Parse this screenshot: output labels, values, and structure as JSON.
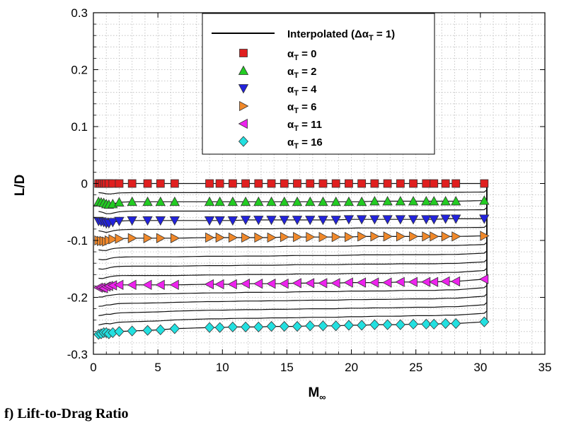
{
  "chart_data": {
    "type": "line",
    "xlabel": "M",
    "xlabel_sub": "∞",
    "ylabel": "L/D",
    "xlim": [
      0,
      35
    ],
    "ylim": [
      -0.3,
      0.3
    ],
    "xticks": [
      0,
      5,
      10,
      15,
      20,
      25,
      30,
      35
    ],
    "yticks": [
      -0.3,
      -0.2,
      -0.1,
      0,
      0.1,
      0.2,
      0.3
    ],
    "ytick_labels": [
      "-0.3",
      "-0.2",
      "-0.1",
      "0",
      "0.1",
      "0.2",
      "0.3"
    ],
    "grid": true,
    "legend_position": "top-right",
    "interpolated_label_prefix": "Interpolated (Δα",
    "interpolated_label_sub": "T",
    "interpolated_label_suffix": " = 1)",
    "interpolated_count": 17,
    "series": [
      {
        "name": "α_T = 0",
        "alpha": "α",
        "sub": "T",
        "label_value": " = 0",
        "marker": "square",
        "color": "#e01f1f",
        "x": [
          0.4,
          0.55,
          0.7,
          0.85,
          1.0,
          1.2,
          1.5,
          2.0,
          3.0,
          4.2,
          5.2,
          6.3,
          9.0,
          9.8,
          10.8,
          11.8,
          12.8,
          13.8,
          14.8,
          15.8,
          16.8,
          17.8,
          18.8,
          19.8,
          20.8,
          21.8,
          22.8,
          23.8,
          24.8,
          25.8,
          26.4,
          27.3,
          28.1,
          30.3
        ],
        "y": [
          0,
          0,
          0,
          0,
          0,
          0,
          0,
          0,
          0,
          0,
          0,
          0,
          0,
          0,
          0,
          0,
          0,
          0,
          0,
          0,
          0,
          0,
          0,
          0,
          0,
          0,
          0,
          0,
          0,
          0,
          0,
          0,
          0,
          0
        ]
      },
      {
        "name": "α_T = 2",
        "alpha": "α",
        "sub": "T",
        "label_value": " = 2",
        "marker": "triangle-up",
        "color": "#22cc22",
        "x": [
          0.4,
          0.6,
          0.8,
          1.0,
          1.2,
          1.5,
          2.0,
          3.0,
          4.2,
          5.2,
          6.3,
          9.0,
          9.8,
          10.8,
          11.8,
          12.8,
          13.8,
          14.8,
          15.8,
          16.8,
          17.8,
          18.8,
          19.8,
          20.8,
          21.8,
          22.8,
          23.8,
          24.8,
          25.8,
          26.4,
          27.3,
          28.1,
          30.3
        ],
        "y": [
          -0.032,
          -0.033,
          -0.034,
          -0.036,
          -0.037,
          -0.036,
          -0.033,
          -0.032,
          -0.032,
          -0.032,
          -0.032,
          -0.032,
          -0.032,
          -0.032,
          -0.032,
          -0.032,
          -0.032,
          -0.032,
          -0.032,
          -0.032,
          -0.032,
          -0.032,
          -0.032,
          -0.032,
          -0.031,
          -0.031,
          -0.031,
          -0.031,
          -0.031,
          -0.031,
          -0.031,
          -0.031,
          -0.03
        ]
      },
      {
        "name": "α_T = 4",
        "alpha": "α",
        "sub": "T",
        "label_value": " = 4",
        "marker": "triangle-down",
        "color": "#2222dd",
        "x": [
          0.4,
          0.6,
          0.8,
          1.0,
          1.2,
          1.5,
          2.0,
          3.0,
          4.2,
          5.2,
          6.3,
          9.0,
          9.8,
          10.8,
          11.8,
          12.8,
          13.8,
          14.8,
          15.8,
          16.8,
          17.8,
          18.8,
          19.8,
          20.8,
          21.8,
          22.8,
          23.8,
          24.8,
          25.8,
          26.4,
          27.3,
          28.1,
          30.3
        ],
        "y": [
          -0.066,
          -0.067,
          -0.068,
          -0.07,
          -0.07,
          -0.068,
          -0.066,
          -0.065,
          -0.065,
          -0.065,
          -0.065,
          -0.065,
          -0.065,
          -0.065,
          -0.064,
          -0.064,
          -0.064,
          -0.064,
          -0.064,
          -0.064,
          -0.064,
          -0.064,
          -0.063,
          -0.063,
          -0.063,
          -0.063,
          -0.063,
          -0.063,
          -0.063,
          -0.063,
          -0.062,
          -0.062,
          -0.062
        ]
      },
      {
        "name": "α_T = 6",
        "alpha": "α",
        "sub": "T",
        "label_value": " = 6",
        "marker": "triangle-right",
        "color": "#f0882a",
        "x": [
          0.4,
          0.6,
          0.8,
          1.0,
          1.2,
          1.5,
          2.0,
          3.0,
          4.2,
          5.2,
          6.3,
          9.0,
          9.8,
          10.8,
          11.8,
          12.8,
          13.8,
          14.8,
          15.8,
          16.8,
          17.8,
          18.8,
          19.8,
          20.8,
          21.8,
          22.8,
          23.8,
          24.8,
          25.8,
          26.4,
          27.3,
          28.1,
          30.3
        ],
        "y": [
          -0.1,
          -0.101,
          -0.101,
          -0.102,
          -0.1,
          -0.098,
          -0.097,
          -0.096,
          -0.096,
          -0.096,
          -0.096,
          -0.095,
          -0.095,
          -0.095,
          -0.095,
          -0.095,
          -0.095,
          -0.094,
          -0.094,
          -0.094,
          -0.094,
          -0.094,
          -0.094,
          -0.093,
          -0.093,
          -0.093,
          -0.093,
          -0.093,
          -0.093,
          -0.093,
          -0.093,
          -0.093,
          -0.092
        ]
      },
      {
        "name": "α_T = 11",
        "alpha": "α",
        "sub": "T",
        "label_value": " = 11",
        "marker": "triangle-left",
        "color": "#ee22ee",
        "x": [
          0.4,
          0.6,
          0.8,
          1.0,
          1.2,
          1.5,
          2.0,
          3.0,
          4.2,
          5.2,
          6.3,
          9.0,
          9.8,
          10.8,
          11.8,
          12.8,
          13.8,
          14.8,
          15.8,
          16.8,
          17.8,
          18.8,
          19.8,
          20.8,
          21.8,
          22.8,
          23.8,
          24.8,
          25.8,
          26.4,
          27.3,
          28.1,
          30.3
        ],
        "y": [
          -0.183,
          -0.183,
          -0.184,
          -0.181,
          -0.18,
          -0.179,
          -0.178,
          -0.178,
          -0.178,
          -0.178,
          -0.178,
          -0.177,
          -0.177,
          -0.177,
          -0.176,
          -0.176,
          -0.176,
          -0.176,
          -0.175,
          -0.175,
          -0.175,
          -0.175,
          -0.174,
          -0.174,
          -0.174,
          -0.174,
          -0.173,
          -0.173,
          -0.173,
          -0.173,
          -0.172,
          -0.172,
          -0.168
        ]
      },
      {
        "name": "α_T = 16",
        "alpha": "α",
        "sub": "T",
        "label_value": " = 16",
        "marker": "diamond",
        "color": "#22e0e0",
        "x": [
          0.4,
          0.6,
          0.8,
          1.0,
          1.2,
          1.5,
          2.0,
          3.0,
          4.2,
          5.2,
          6.3,
          9.0,
          9.8,
          10.8,
          11.8,
          12.8,
          13.8,
          14.8,
          15.8,
          16.8,
          17.8,
          18.8,
          19.8,
          20.8,
          21.8,
          22.8,
          23.8,
          24.8,
          25.8,
          26.4,
          27.3,
          28.1,
          30.3
        ],
        "y": [
          -0.265,
          -0.264,
          -0.262,
          -0.262,
          -0.264,
          -0.262,
          -0.26,
          -0.259,
          -0.258,
          -0.257,
          -0.255,
          -0.253,
          -0.253,
          -0.252,
          -0.252,
          -0.252,
          -0.251,
          -0.251,
          -0.251,
          -0.25,
          -0.25,
          -0.25,
          -0.249,
          -0.249,
          -0.248,
          -0.248,
          -0.248,
          -0.247,
          -0.247,
          -0.247,
          -0.246,
          -0.246,
          -0.243
        ]
      }
    ]
  },
  "caption": "f) Lift-to-Drag Ratio"
}
